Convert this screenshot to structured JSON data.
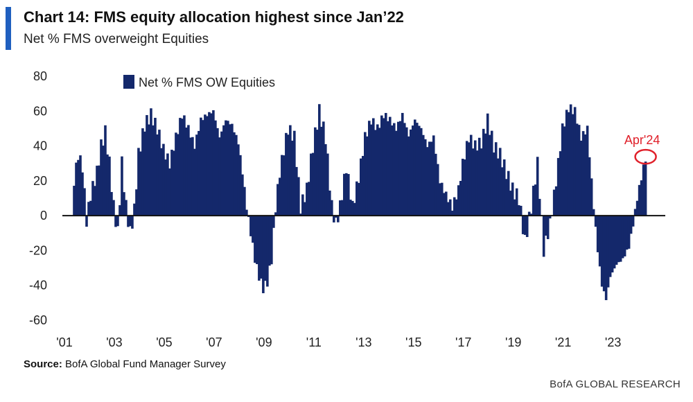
{
  "header": {
    "title": "Chart 14: FMS equity allocation highest since Jan’22",
    "subtitle": "Net % FMS overweight Equities"
  },
  "footer": {
    "source_label": "Source:",
    "source_text": "BofA Global Fund Manager Survey",
    "brand": "BofA GLOBAL RESEARCH"
  },
  "colors": {
    "bar": "#14286b",
    "accent": "#1f5fbf",
    "annotation": "#e0202a"
  },
  "chart_data": {
    "type": "bar",
    "title": "Chart 14: FMS equity allocation highest since Jan’22",
    "subtitle": "Net % FMS overweight Equities",
    "ylim": [
      -60,
      80
    ],
    "yticks": [
      80,
      60,
      40,
      20,
      0,
      -20,
      -40,
      -60
    ],
    "xticks": [
      "'01",
      "'03",
      "'05",
      "'07",
      "'09",
      "'11",
      "'13",
      "'15",
      "'17",
      "'19",
      "'21",
      "'23"
    ],
    "legend": "top-left",
    "annotation": {
      "text": "Apr'24",
      "x": "2024-04",
      "y": 33
    },
    "series": [
      {
        "name": "Net % FMS OW Equities",
        "anchors": [
          [
            "2001-05",
            20
          ],
          [
            "2001-07",
            35
          ],
          [
            "2001-09",
            28
          ],
          [
            "2001-11",
            -3
          ],
          [
            "2002-01",
            12
          ],
          [
            "2002-04",
            25
          ],
          [
            "2002-06",
            40
          ],
          [
            "2002-08",
            48
          ],
          [
            "2002-10",
            30
          ],
          [
            "2002-12",
            5
          ],
          [
            "2003-02",
            -10
          ],
          [
            "2003-04",
            30
          ],
          [
            "2003-06",
            5
          ],
          [
            "2003-08",
            -10
          ],
          [
            "2003-10",
            3
          ],
          [
            "2003-12",
            35
          ],
          [
            "2004-03",
            52
          ],
          [
            "2004-06",
            58
          ],
          [
            "2004-09",
            50
          ],
          [
            "2004-12",
            38
          ],
          [
            "2005-03",
            30
          ],
          [
            "2005-06",
            45
          ],
          [
            "2005-09",
            58
          ],
          [
            "2005-12",
            50
          ],
          [
            "2006-03",
            40
          ],
          [
            "2006-06",
            55
          ],
          [
            "2006-09",
            58
          ],
          [
            "2006-12",
            60
          ],
          [
            "2007-03",
            45
          ],
          [
            "2007-06",
            55
          ],
          [
            "2007-09",
            52
          ],
          [
            "2007-12",
            42
          ],
          [
            "2008-02",
            25
          ],
          [
            "2008-04",
            5
          ],
          [
            "2008-06",
            -10
          ],
          [
            "2008-08",
            -25
          ],
          [
            "2008-10",
            -35
          ],
          [
            "2008-12",
            -42
          ],
          [
            "2009-02",
            -38
          ],
          [
            "2009-04",
            -25
          ],
          [
            "2009-06",
            5
          ],
          [
            "2009-08",
            25
          ],
          [
            "2009-10",
            38
          ],
          [
            "2009-12",
            50
          ],
          [
            "2010-03",
            45
          ],
          [
            "2010-06",
            5
          ],
          [
            "2010-09",
            15
          ],
          [
            "2010-12",
            40
          ],
          [
            "2011-03",
            60
          ],
          [
            "2011-06",
            45
          ],
          [
            "2011-09",
            5
          ],
          [
            "2011-11",
            -5
          ],
          [
            "2012-01",
            5
          ],
          [
            "2012-04",
            28
          ],
          [
            "2012-07",
            5
          ],
          [
            "2012-10",
            22
          ],
          [
            "2013-01",
            45
          ],
          [
            "2013-04",
            55
          ],
          [
            "2013-07",
            50
          ],
          [
            "2013-10",
            58
          ],
          [
            "2014-01",
            55
          ],
          [
            "2014-04",
            50
          ],
          [
            "2014-07",
            58
          ],
          [
            "2014-10",
            46
          ],
          [
            "2015-01",
            55
          ],
          [
            "2015-04",
            50
          ],
          [
            "2015-07",
            40
          ],
          [
            "2015-10",
            45
          ],
          [
            "2016-01",
            20
          ],
          [
            "2016-04",
            12
          ],
          [
            "2016-07",
            5
          ],
          [
            "2016-10",
            15
          ],
          [
            "2016-12",
            30
          ],
          [
            "2017-03",
            45
          ],
          [
            "2017-06",
            40
          ],
          [
            "2017-09",
            42
          ],
          [
            "2017-12",
            55
          ],
          [
            "2018-03",
            40
          ],
          [
            "2018-06",
            35
          ],
          [
            "2018-09",
            25
          ],
          [
            "2018-12",
            15
          ],
          [
            "2019-03",
            10
          ],
          [
            "2019-06",
            -15
          ],
          [
            "2019-09",
            5
          ],
          [
            "2019-12",
            30
          ],
          [
            "2020-03",
            -20
          ],
          [
            "2020-06",
            -5
          ],
          [
            "2020-09",
            20
          ],
          [
            "2020-12",
            50
          ],
          [
            "2021-03",
            62
          ],
          [
            "2021-06",
            60
          ],
          [
            "2021-09",
            45
          ],
          [
            "2021-12",
            50
          ],
          [
            "2022-03",
            5
          ],
          [
            "2022-05",
            -20
          ],
          [
            "2022-07",
            -40
          ],
          [
            "2022-09",
            -48
          ],
          [
            "2022-11",
            -35
          ],
          [
            "2023-02",
            -28
          ],
          [
            "2023-05",
            -25
          ],
          [
            "2023-08",
            -18
          ],
          [
            "2023-10",
            -5
          ],
          [
            "2023-12",
            10
          ],
          [
            "2024-02",
            22
          ],
          [
            "2024-04",
            33
          ]
        ]
      }
    ]
  }
}
